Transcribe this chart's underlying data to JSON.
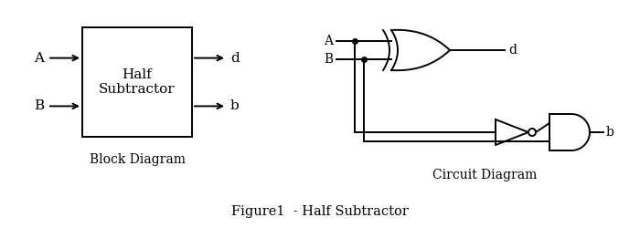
{
  "bg_color": "#ffffff",
  "line_color": "#000000",
  "title": "Figure1  - Half Subtractor",
  "block_label": "Half\nSubtractor",
  "block_diagram_label": "Block Diagram",
  "circuit_diagram_label": "Circuit Diagram",
  "title_fontsize": 11,
  "label_fontsize": 11
}
